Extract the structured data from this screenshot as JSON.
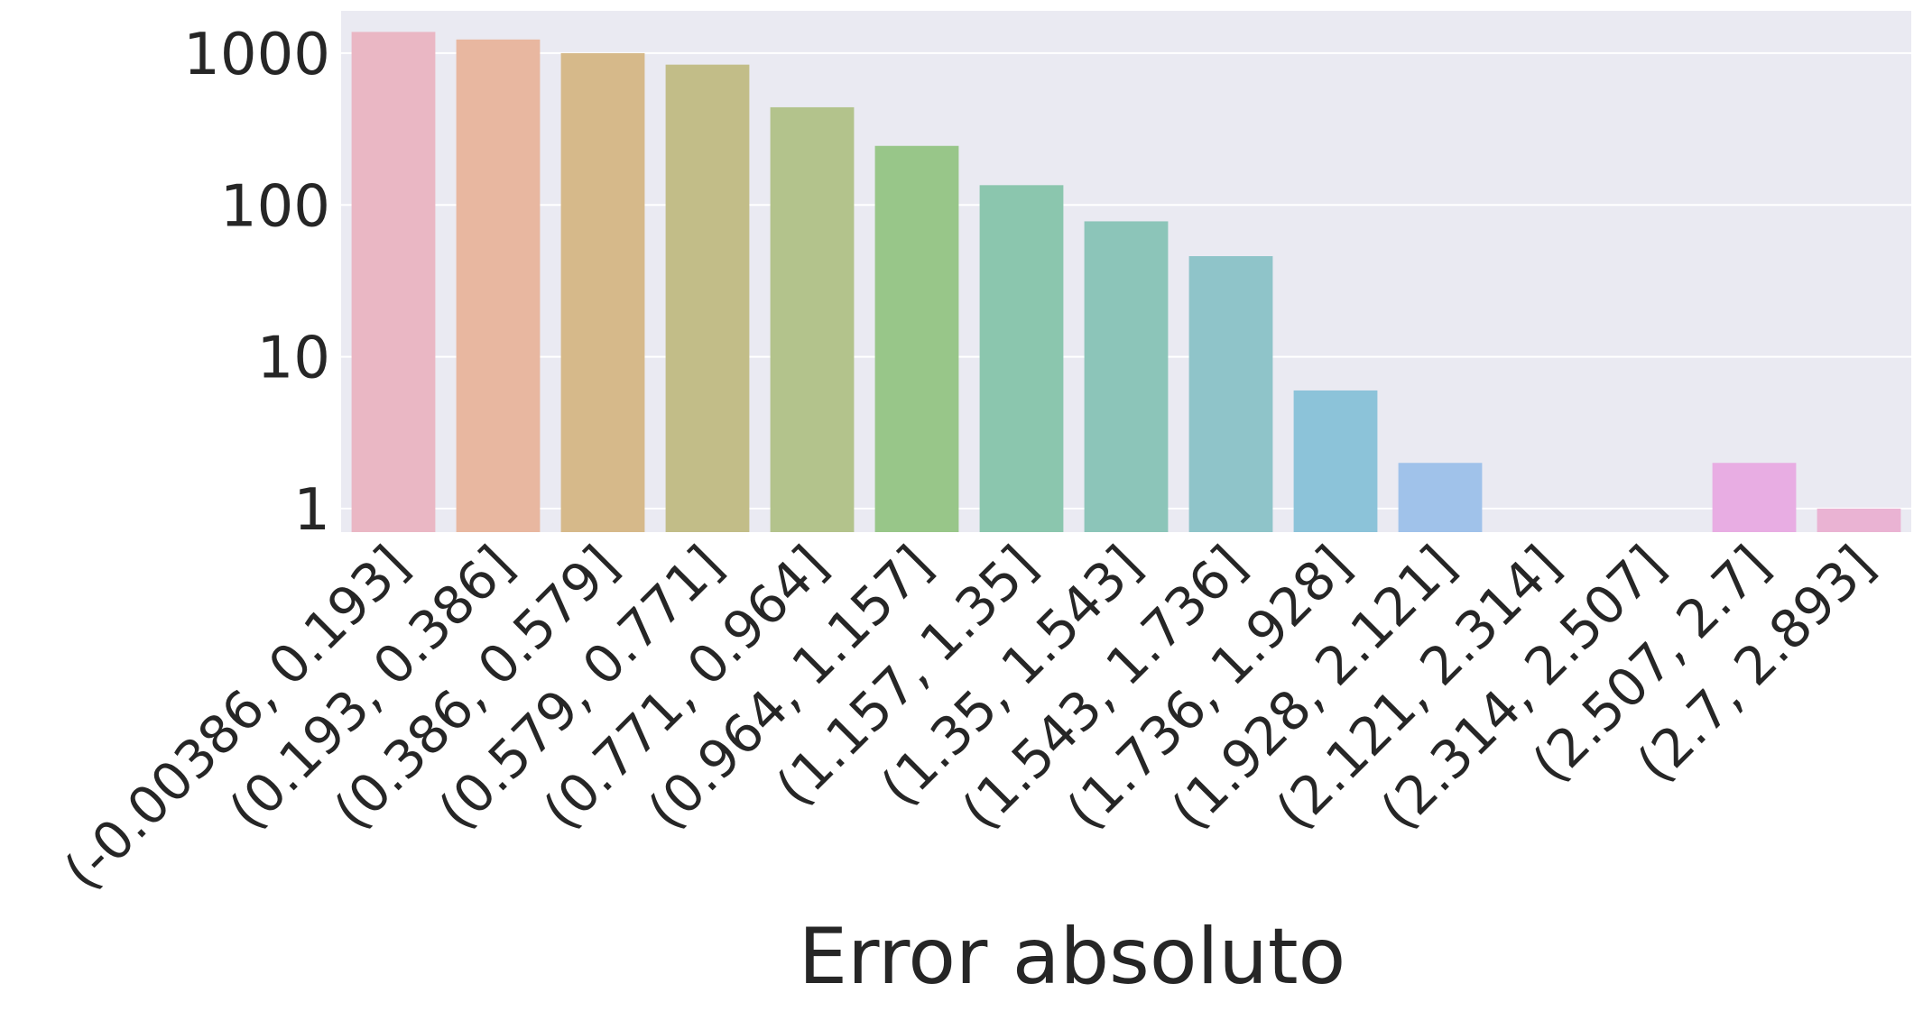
{
  "chart_data": {
    "type": "bar",
    "title": "",
    "xlabel": "Error absoluto",
    "ylabel": "",
    "yscale": "log",
    "ylim": [
      0.7,
      1900
    ],
    "yticks": [
      1,
      10,
      100,
      1000
    ],
    "ytick_labels": [
      "1",
      "10",
      "100",
      "1000"
    ],
    "grid": true,
    "legend": "none",
    "categories": [
      "(-0.00386, 0.193]",
      "(0.193, 0.386]",
      "(0.386, 0.579]",
      "(0.579, 0.771]",
      "(0.771, 0.964]",
      "(0.964, 1.157]",
      "(1.157, 1.35]",
      "(1.35, 1.543]",
      "(1.543, 1.736]",
      "(1.736, 1.928]",
      "(1.928, 2.121]",
      "(2.121, 2.314]",
      "(2.314, 2.507]",
      "(2.507, 2.7]",
      "(2.7, 2.893]"
    ],
    "values": [
      1380,
      1230,
      1000,
      840,
      440,
      245,
      135,
      78,
      46,
      6,
      2,
      0,
      0,
      2,
      1
    ],
    "colors": [
      "#eab7c4",
      "#e8b7a0",
      "#d6b98a",
      "#c2bd88",
      "#b3c38c",
      "#98c689",
      "#8bc6ae",
      "#8cc5b9",
      "#8fc4c9",
      "#8cc3d9",
      "#a0c2ea",
      "#c5bdf0",
      "#dbb8ee",
      "#e8ade3",
      "#eab3d3"
    ]
  }
}
